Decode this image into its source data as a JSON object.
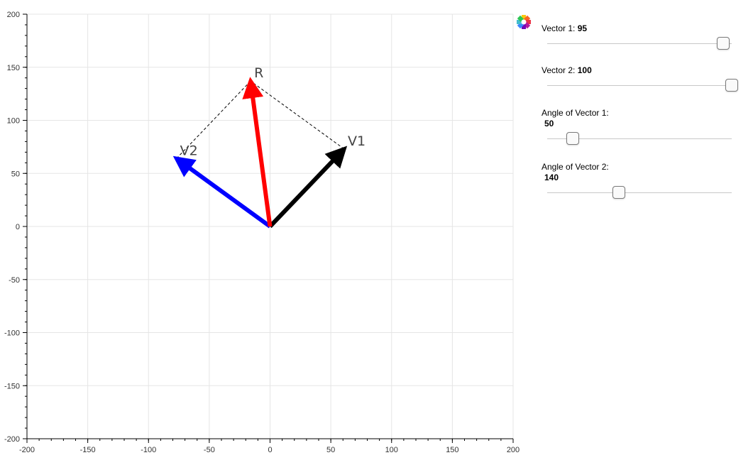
{
  "chart_data": {
    "type": "vector",
    "xlim": [
      -200,
      200
    ],
    "ylim": [
      -200,
      200
    ],
    "x_ticks": [
      -200,
      -150,
      -100,
      -50,
      0,
      50,
      100,
      150,
      200
    ],
    "y_ticks": [
      200,
      150,
      100,
      50,
      0,
      -50,
      -100,
      -150,
      -200
    ],
    "grid": true,
    "vectors": [
      {
        "name": "V1",
        "x": 61,
        "y": 73,
        "color": "#000000"
      },
      {
        "name": "V2",
        "x": -77,
        "y": 64,
        "color": "#0000ff"
      },
      {
        "name": "R",
        "x": -16,
        "y": 137,
        "color": "#ff0000"
      }
    ],
    "dashed_color": "#000000"
  },
  "controls": {
    "vector1": {
      "label": "Vector 1:",
      "value": "95",
      "fraction": 0.955
    },
    "vector2": {
      "label": "Vector 2:",
      "value": "100",
      "fraction": 1.0
    },
    "angle1": {
      "label": "Angle of Vector 1:",
      "value": "50",
      "fraction": 0.139
    },
    "angle2": {
      "label": "Angle of Vector 2:",
      "value": "140",
      "fraction": 0.389
    }
  },
  "icons": {
    "logo": "bokeh-logo-icon"
  }
}
